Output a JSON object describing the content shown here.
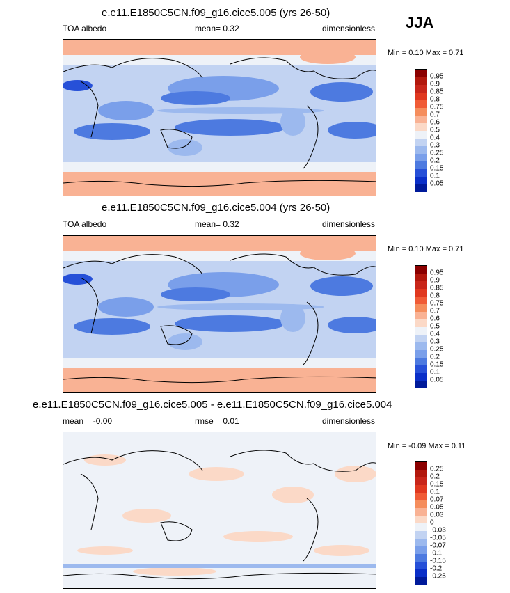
{
  "season": "JJA",
  "panels": [
    {
      "title": "e.e11.E1850C5CN.f09_g16.cice5.005 (yrs 26-50)",
      "left_label": "TOA albedo",
      "center_label": "mean=   0.32",
      "right_label": "dimensionless",
      "minmax": "Min =   0.10 Max =   0.71",
      "colorbar": {
        "labels": [
          "0.95",
          "0.9",
          "0.85",
          "0.8",
          "0.75",
          "0.7",
          "0.6",
          "0.5",
          "0.4",
          "0.3",
          "0.25",
          "0.2",
          "0.15",
          "0.1",
          "0.05"
        ],
        "colors": [
          "#8b0000",
          "#b2180d",
          "#c8261a",
          "#e0381f",
          "#f05b36",
          "#f58d5c",
          "#f9b294",
          "#fbd9c7",
          "#eef2f8",
          "#c2d3f2",
          "#9cb9ee",
          "#7a9fea",
          "#4d7ae0",
          "#2650d8",
          "#0a2fc8",
          "#001a9a"
        ]
      }
    },
    {
      "title": "e.e11.E1850C5CN.f09_g16.cice5.004 (yrs 26-50)",
      "left_label": "TOA albedo",
      "center_label": "mean=   0.32",
      "right_label": "dimensionless",
      "minmax": "Min =   0.10 Max =   0.71",
      "colorbar": {
        "labels": [
          "0.95",
          "0.9",
          "0.85",
          "0.8",
          "0.75",
          "0.7",
          "0.6",
          "0.5",
          "0.4",
          "0.3",
          "0.25",
          "0.2",
          "0.15",
          "0.1",
          "0.05"
        ],
        "colors": [
          "#8b0000",
          "#b2180d",
          "#c8261a",
          "#e0381f",
          "#f05b36",
          "#f58d5c",
          "#f9b294",
          "#fbd9c7",
          "#eef2f8",
          "#c2d3f2",
          "#9cb9ee",
          "#7a9fea",
          "#4d7ae0",
          "#2650d8",
          "#0a2fc8",
          "#001a9a"
        ]
      }
    },
    {
      "title": "e.e11.E1850C5CN.f09_g16.cice5.005 - e.e11.E1850C5CN.f09_g16.cice5.004",
      "left_label": "mean =  -0.00",
      "center_label": "rmse =   0.01",
      "right_label": "dimensionless",
      "minmax": "Min =  -0.09 Max =   0.11",
      "colorbar": {
        "labels": [
          "0.25",
          "0.2",
          "0.15",
          "0.1",
          "0.07",
          "0.05",
          "0.03",
          "0",
          "-0.03",
          "-0.05",
          "-0.07",
          "-0.1",
          "-0.15",
          "-0.2",
          "-0.25"
        ],
        "colors": [
          "#8b0000",
          "#b2180d",
          "#c8261a",
          "#e0381f",
          "#f05b36",
          "#f58d5c",
          "#f9b294",
          "#fbd9c7",
          "#eef2f8",
          "#c2d3f2",
          "#9cb9ee",
          "#7a9fea",
          "#4d7ae0",
          "#2650d8",
          "#0a2fc8",
          "#001a9a"
        ]
      }
    }
  ],
  "chart_data": [
    {
      "type": "heatmap",
      "title": "e.e11.E1850C5CN.f09_g16.cice5.005 (yrs 26-50)",
      "variable": "TOA albedo",
      "season": "JJA",
      "mean": 0.32,
      "min": 0.1,
      "max": 0.71,
      "units": "dimensionless",
      "levels": [
        0.05,
        0.1,
        0.15,
        0.2,
        0.25,
        0.3,
        0.4,
        0.5,
        0.6,
        0.7,
        0.75,
        0.8,
        0.85,
        0.9,
        0.95
      ]
    },
    {
      "type": "heatmap",
      "title": "e.e11.E1850C5CN.f09_g16.cice5.004 (yrs 26-50)",
      "variable": "TOA albedo",
      "season": "JJA",
      "mean": 0.32,
      "min": 0.1,
      "max": 0.71,
      "units": "dimensionless",
      "levels": [
        0.05,
        0.1,
        0.15,
        0.2,
        0.25,
        0.3,
        0.4,
        0.5,
        0.6,
        0.7,
        0.75,
        0.8,
        0.85,
        0.9,
        0.95
      ]
    },
    {
      "type": "heatmap",
      "title": "e.e11.E1850C5CN.f09_g16.cice5.005 - e.e11.E1850C5CN.f09_g16.cice5.004",
      "season": "JJA",
      "mean": -0.0,
      "rmse": 0.01,
      "min": -0.09,
      "max": 0.11,
      "units": "dimensionless",
      "levels": [
        -0.25,
        -0.2,
        -0.15,
        -0.1,
        -0.07,
        -0.05,
        -0.03,
        0,
        0.03,
        0.05,
        0.07,
        0.1,
        0.15,
        0.2,
        0.25
      ]
    }
  ]
}
